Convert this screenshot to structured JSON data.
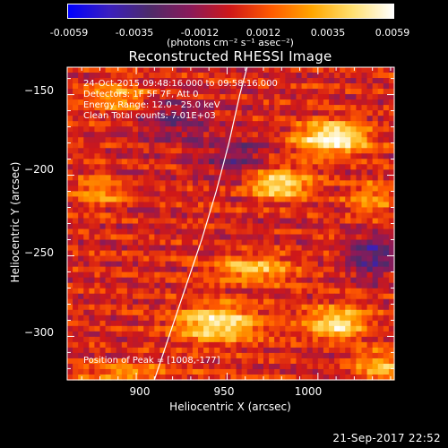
{
  "colorbar": {
    "tick_labels": [
      "-0.0059",
      "-0.0035",
      "-0.0012",
      "0.0012",
      "0.0035",
      "0.0059"
    ],
    "units": "(photons cm⁻² s⁻¹ asec⁻²)",
    "gradient_colors": [
      "#0000ff",
      "#3a1fbf",
      "#4d2b6a",
      "#8a1a5a",
      "#d01818",
      "#ff5a00",
      "#ffa600",
      "#ffe070",
      "#ffffff"
    ]
  },
  "title": "Reconstructed RHESSI Image",
  "info": {
    "time_range": "24-Oct-2015 09:48:16.000 to 09:58:16.000",
    "detectors": "Detectors: 1F 5F 7F, Att 0",
    "energy_range": "Energy Range: 12.0 - 25.0 keV",
    "method": "Clean    Total counts: 7.01E+03",
    "peak": "Position of Peak = [1008,-177]"
  },
  "axes": {
    "xlabel": "Heliocentric X (arcsec)",
    "ylabel": "Heliocentric Y (arcsec)",
    "xlim": [
      862,
      1042
    ],
    "ylim": [
      -327,
      -133
    ],
    "xticks": [
      900,
      950,
      1000
    ],
    "xtick_labels": [
      "900",
      "950",
      "1000"
    ],
    "yticks": [
      -150,
      -200,
      -250,
      -300
    ],
    "ytick_labels": [
      "−150",
      "−200",
      "−250",
      "−300"
    ]
  },
  "image": {
    "sources": [
      {
        "x": 1008,
        "y": -177,
        "sx": 14,
        "sy": 7,
        "amp": 1.0
      },
      {
        "x": 978,
        "y": -205,
        "sx": 12,
        "sy": 7,
        "amp": 0.85
      },
      {
        "x": 945,
        "y": -292,
        "sx": 16,
        "sy": 8,
        "amp": 0.85
      },
      {
        "x": 1010,
        "y": -292,
        "sx": 12,
        "sy": 7,
        "amp": 0.8
      },
      {
        "x": 965,
        "y": -258,
        "sx": 16,
        "sy": 6,
        "amp": 0.6
      },
      {
        "x": 890,
        "y": -152,
        "sx": 12,
        "sy": 6,
        "amp": 0.55
      },
      {
        "x": 880,
        "y": -210,
        "sx": 10,
        "sy": 6,
        "amp": 0.45
      },
      {
        "x": 895,
        "y": -325,
        "sx": 20,
        "sy": 6,
        "amp": 0.45
      },
      {
        "x": 1030,
        "y": -215,
        "sx": 10,
        "sy": 8,
        "amp": 0.4
      },
      {
        "x": 1035,
        "y": -320,
        "sx": 10,
        "sy": 8,
        "amp": 0.55
      }
    ],
    "negative_regions": [
      {
        "x": 1030,
        "y": -250,
        "sx": 10,
        "sy": 10,
        "amp": -0.55
      },
      {
        "x": 920,
        "y": -165,
        "sx": 14,
        "sy": 10,
        "amp": -0.35
      },
      {
        "x": 955,
        "y": -190,
        "sx": 14,
        "sy": 10,
        "amp": -0.35
      }
    ]
  },
  "limb_curve": [
    [
      910,
      -327
    ],
    [
      918,
      -300
    ],
    [
      927,
      -270
    ],
    [
      936,
      -240
    ],
    [
      944,
      -210
    ],
    [
      951,
      -180
    ],
    [
      957,
      -150
    ],
    [
      961,
      -133
    ]
  ],
  "timestamp": "21-Sep-2017 22:52"
}
